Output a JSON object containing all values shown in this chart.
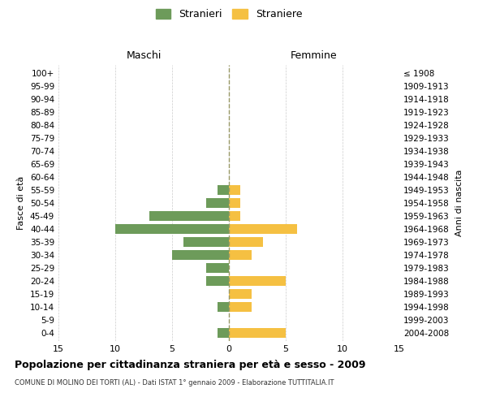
{
  "age_groups": [
    "0-4",
    "5-9",
    "10-14",
    "15-19",
    "20-24",
    "25-29",
    "30-34",
    "35-39",
    "40-44",
    "45-49",
    "50-54",
    "55-59",
    "60-64",
    "65-69",
    "70-74",
    "75-79",
    "80-84",
    "85-89",
    "90-94",
    "95-99",
    "100+"
  ],
  "birth_years": [
    "2004-2008",
    "1999-2003",
    "1994-1998",
    "1989-1993",
    "1984-1988",
    "1979-1983",
    "1974-1978",
    "1969-1973",
    "1964-1968",
    "1959-1963",
    "1954-1958",
    "1949-1953",
    "1944-1948",
    "1939-1943",
    "1934-1938",
    "1929-1933",
    "1924-1928",
    "1919-1923",
    "1914-1918",
    "1909-1913",
    "≤ 1908"
  ],
  "males": [
    1,
    0,
    1,
    0,
    2,
    2,
    5,
    4,
    10,
    7,
    2,
    1,
    0,
    0,
    0,
    0,
    0,
    0,
    0,
    0,
    0
  ],
  "females": [
    5,
    0,
    2,
    2,
    5,
    0,
    2,
    3,
    6,
    1,
    1,
    1,
    0,
    0,
    0,
    0,
    0,
    0,
    0,
    0,
    0
  ],
  "male_color": "#6d9b5a",
  "female_color": "#f5c042",
  "title": "Popolazione per cittadinanza straniera per età e sesso - 2009",
  "subtitle": "COMUNE DI MOLINO DEI TORTI (AL) - Dati ISTAT 1° gennaio 2009 - Elaborazione TUTTITALIA.IT",
  "ylabel_left": "Fasce di età",
  "ylabel_right": "Anni di nascita",
  "xlabel_left": "Maschi",
  "xlabel_right": "Femmine",
  "legend_male": "Stranieri",
  "legend_female": "Straniere",
  "xlim": 15,
  "background_color": "#ffffff",
  "grid_color": "#cccccc",
  "dashed_line_color": "#999966"
}
